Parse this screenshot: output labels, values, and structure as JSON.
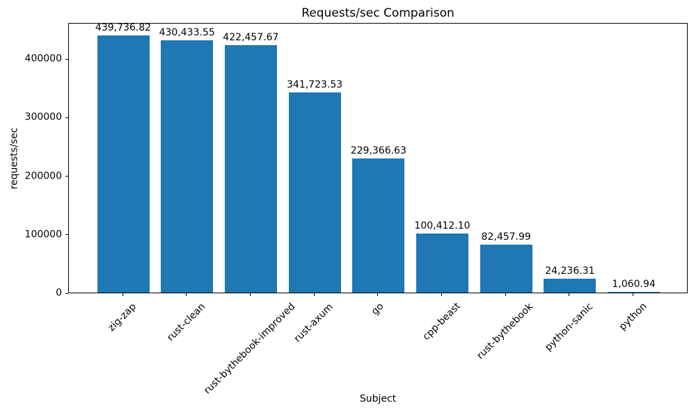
{
  "chart_data": {
    "type": "bar",
    "title": "Requests/sec Comparison",
    "xlabel": "Subject",
    "ylabel": "requests/sec",
    "categories": [
      "zig-zap",
      "rust-clean",
      "rust-bythebook-improved",
      "rust-axum",
      "go",
      "cpp-beast",
      "rust-bythebook",
      "python-sanic",
      "python"
    ],
    "values": [
      439736.82,
      430433.55,
      422457.67,
      341723.53,
      229366.63,
      100412.1,
      82457.99,
      24236.31,
      1060.94
    ],
    "value_labels": [
      "439,736.82",
      "430,433.55",
      "422,457.67",
      "341,723.53",
      "229,366.63",
      "100,412.10",
      "82,457.99",
      "24,236.31",
      "1,060.94"
    ],
    "yticks": [
      0,
      100000,
      200000,
      300000,
      400000
    ],
    "ylim": [
      0,
      461724
    ],
    "bar_color": "#1f77b4",
    "grid": false,
    "legend": null,
    "x_tick_rotation": 45
  }
}
